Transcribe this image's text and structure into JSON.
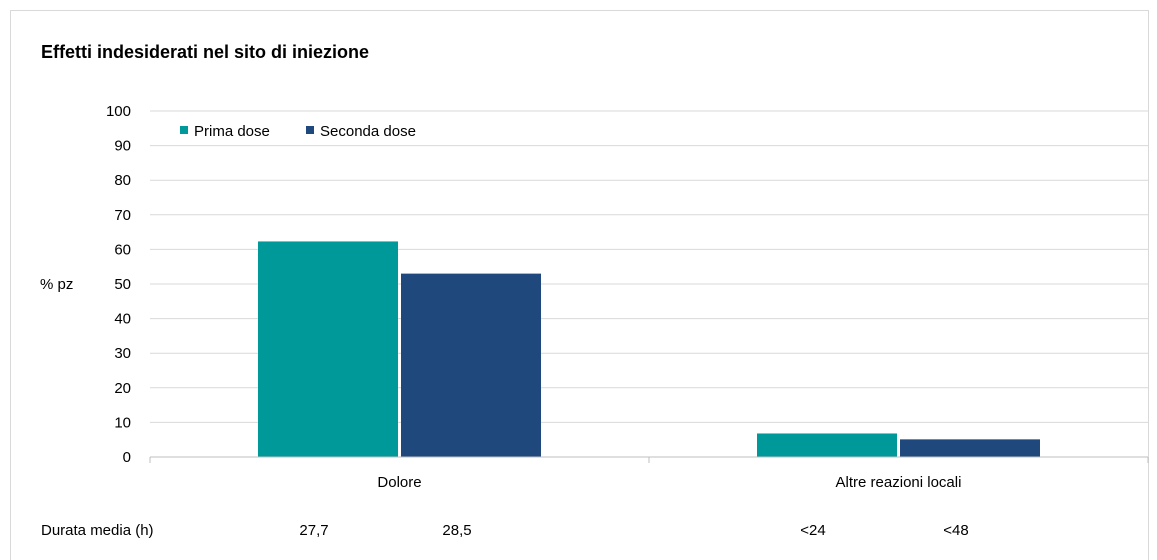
{
  "chart_data": {
    "type": "bar",
    "title": "Effetti indesiderati nel sito di iniezione",
    "ylabel": "% pz",
    "xlabel": "",
    "ylim": [
      0,
      100
    ],
    "yticks": [
      0,
      10,
      20,
      30,
      40,
      50,
      60,
      70,
      80,
      90,
      100
    ],
    "grid": true,
    "legend_position": "top-left",
    "categories": [
      "Dolore",
      "Altre reazioni locali"
    ],
    "series": [
      {
        "name": "Prima dose",
        "color": "#009999",
        "values": [
          62.3,
          6.8
        ]
      },
      {
        "name": "Seconda dose",
        "color": "#1f497d",
        "values": [
          53.0,
          5.1
        ]
      }
    ],
    "duration_row": {
      "label": "Durata media (h)",
      "values": [
        [
          "27,7",
          "28,5"
        ],
        [
          "<24",
          "<48"
        ]
      ]
    }
  }
}
